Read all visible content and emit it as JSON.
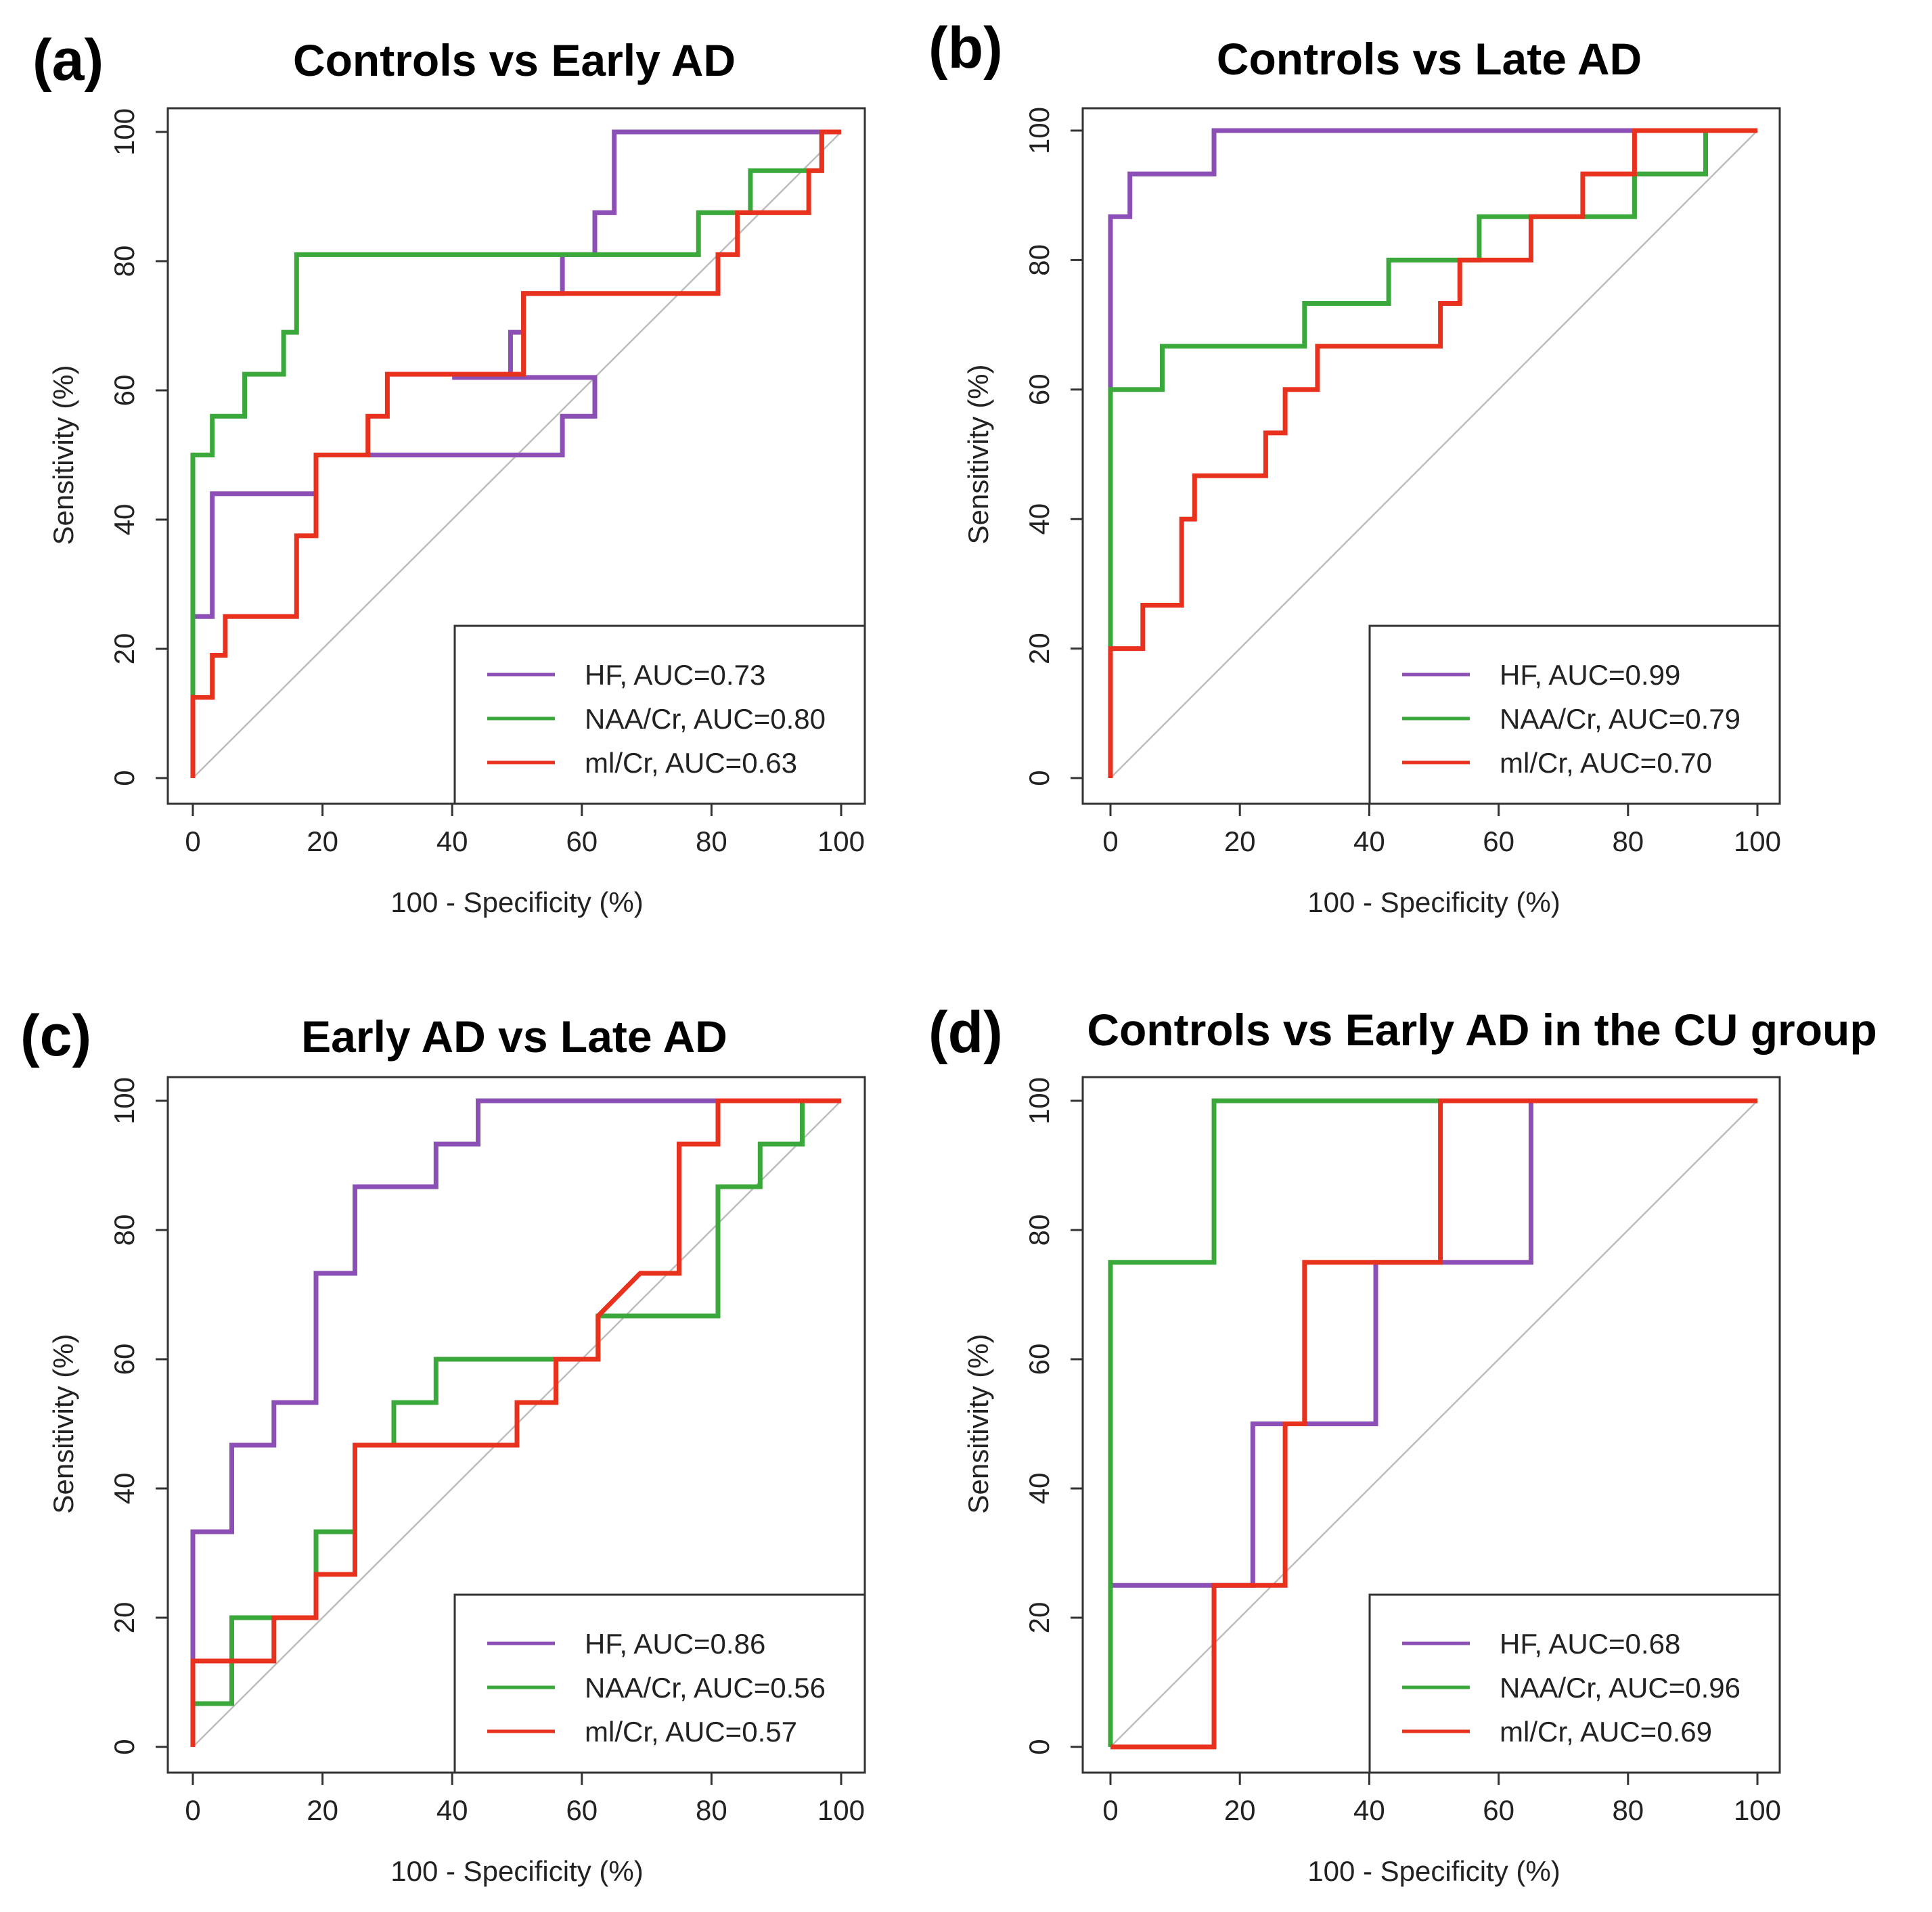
{
  "figure": {
    "xlabel": "100 - Specificity (%)",
    "ylabel": "Sensitivity (%)",
    "ticks": [
      "0",
      "20",
      "40",
      "60",
      "80",
      "100"
    ]
  },
  "colors": {
    "HF": "#8b4fb5",
    "NAA/Cr": "#3aa83a",
    "mI/Cr": "#e8321e",
    "diagonal": "#bdbdbd"
  },
  "chart_data": [
    {
      "id": "a",
      "letter": "(a)",
      "type": "line",
      "title": "Controls vs Early AD",
      "xlabel": "100 - Specificity (%)",
      "ylabel": "Sensitivity (%)",
      "xlim": [
        0,
        100
      ],
      "ylim": [
        0,
        100
      ],
      "series": [
        {
          "name": "HF",
          "legend": "HF, AUC=0.73",
          "auc": 0.73,
          "color": "#8b4fb5",
          "points": [
            [
              0,
              0
            ],
            [
              0,
              25
            ],
            [
              3,
              25
            ],
            [
              3,
              44
            ],
            [
              19,
              44
            ],
            [
              19,
              50
            ],
            [
              57,
              50
            ],
            [
              57,
              56
            ],
            [
              62,
              56
            ],
            [
              62,
              62
            ],
            [
              40,
              62
            ],
            [
              49,
              62
            ],
            [
              49,
              69
            ],
            [
              51,
              69
            ],
            [
              51,
              75
            ],
            [
              57,
              75
            ],
            [
              57,
              81
            ],
            [
              62,
              81
            ],
            [
              62,
              87.5
            ],
            [
              65,
              87.5
            ],
            [
              65,
              100
            ],
            [
              100,
              100
            ]
          ]
        },
        {
          "name": "NAA/Cr",
          "legend": "NAA/Cr, AUC=0.80",
          "auc": 0.8,
          "color": "#3aa83a",
          "points": [
            [
              0,
              0
            ],
            [
              0,
              12.5
            ],
            [
              0,
              50
            ],
            [
              3,
              50
            ],
            [
              3,
              56
            ],
            [
              8,
              56
            ],
            [
              8,
              62.5
            ],
            [
              14,
              62.5
            ],
            [
              14,
              69
            ],
            [
              16,
              69
            ],
            [
              16,
              81
            ],
            [
              78,
              81
            ],
            [
              78,
              87.5
            ],
            [
              86,
              87.5
            ],
            [
              86,
              94
            ],
            [
              97,
              94
            ],
            [
              97,
              100
            ],
            [
              100,
              100
            ]
          ]
        },
        {
          "name": "mI/Cr",
          "legend": "ml/Cr, AUC=0.63",
          "auc": 0.63,
          "color": "#e8321e",
          "points": [
            [
              0,
              0
            ],
            [
              0,
              12.5
            ],
            [
              3,
              12.5
            ],
            [
              3,
              19
            ],
            [
              5,
              19
            ],
            [
              5,
              25
            ],
            [
              16,
              25
            ],
            [
              16,
              37.5
            ],
            [
              19,
              37.5
            ],
            [
              19,
              50
            ],
            [
              27,
              50
            ],
            [
              27,
              56
            ],
            [
              30,
              56
            ],
            [
              30,
              62.5
            ],
            [
              51,
              62.5
            ],
            [
              51,
              75
            ],
            [
              81,
              75
            ],
            [
              81,
              81
            ],
            [
              84,
              81
            ],
            [
              84,
              87.5
            ],
            [
              95,
              87.5
            ],
            [
              95,
              94
            ],
            [
              97,
              94
            ],
            [
              97,
              100
            ],
            [
              100,
              100
            ]
          ]
        }
      ]
    },
    {
      "id": "b",
      "letter": "(b)",
      "type": "line",
      "title": "Controls vs Late AD",
      "xlabel": "100 - Specificity (%)",
      "ylabel": "Sensitivity (%)",
      "xlim": [
        0,
        100
      ],
      "ylim": [
        0,
        100
      ],
      "series": [
        {
          "name": "HF",
          "legend": "HF, AUC=0.99",
          "auc": 0.99,
          "color": "#8b4fb5",
          "points": [
            [
              0,
              0
            ],
            [
              0,
              86.7
            ],
            [
              3,
              86.7
            ],
            [
              3,
              93.3
            ],
            [
              16,
              93.3
            ],
            [
              16,
              100
            ],
            [
              100,
              100
            ]
          ]
        },
        {
          "name": "NAA/Cr",
          "legend": "NAA/Cr, AUC=0.79",
          "auc": 0.79,
          "color": "#3aa83a",
          "points": [
            [
              0,
              0
            ],
            [
              0,
              20
            ],
            [
              0,
              60
            ],
            [
              8,
              60
            ],
            [
              8,
              66.7
            ],
            [
              30,
              66.7
            ],
            [
              30,
              73.3
            ],
            [
              43,
              73.3
            ],
            [
              43,
              80
            ],
            [
              57,
              80
            ],
            [
              57,
              86.7
            ],
            [
              81,
              86.7
            ],
            [
              81,
              93.3
            ],
            [
              92,
              93.3
            ],
            [
              92,
              100
            ],
            [
              100,
              100
            ]
          ]
        },
        {
          "name": "mI/Cr",
          "legend": "ml/Cr, AUC=0.70",
          "auc": 0.7,
          "color": "#e8321e",
          "points": [
            [
              0,
              0
            ],
            [
              0,
              20
            ],
            [
              5,
              20
            ],
            [
              5,
              26.7
            ],
            [
              11,
              26.7
            ],
            [
              11,
              40
            ],
            [
              13,
              40
            ],
            [
              13,
              46.7
            ],
            [
              24,
              46.7
            ],
            [
              24,
              53.3
            ],
            [
              27,
              53.3
            ],
            [
              27,
              60
            ],
            [
              32,
              60
            ],
            [
              32,
              66.7
            ],
            [
              51,
              66.7
            ],
            [
              51,
              73.3
            ],
            [
              54,
              73.3
            ],
            [
              54,
              80
            ],
            [
              65,
              80
            ],
            [
              65,
              86.7
            ],
            [
              73,
              86.7
            ],
            [
              73,
              93.3
            ],
            [
              81,
              93.3
            ],
            [
              81,
              100
            ],
            [
              100,
              100
            ]
          ]
        }
      ]
    },
    {
      "id": "c",
      "letter": "(c)",
      "type": "line",
      "title": "Early AD vs Late AD",
      "xlabel": "100 - Specificity (%)",
      "ylabel": "Sensitivity (%)",
      "xlim": [
        0,
        100
      ],
      "ylim": [
        0,
        100
      ],
      "series": [
        {
          "name": "HF",
          "legend": "HF, AUC=0.86",
          "auc": 0.86,
          "color": "#8b4fb5",
          "points": [
            [
              0,
              0
            ],
            [
              0,
              33.3
            ],
            [
              6,
              33.3
            ],
            [
              6,
              46.7
            ],
            [
              12.5,
              46.7
            ],
            [
              12.5,
              53.3
            ],
            [
              19,
              53.3
            ],
            [
              19,
              73.3
            ],
            [
              25,
              73.3
            ],
            [
              25,
              86.7
            ],
            [
              37.5,
              86.7
            ],
            [
              37.5,
              93.3
            ],
            [
              44,
              93.3
            ],
            [
              44,
              100
            ],
            [
              100,
              100
            ]
          ]
        },
        {
          "name": "NAA/Cr",
          "legend": "NAA/Cr, AUC=0.56",
          "auc": 0.56,
          "color": "#3aa83a",
          "points": [
            [
              0,
              0
            ],
            [
              0,
              6.7
            ],
            [
              6,
              6.7
            ],
            [
              6,
              20
            ],
            [
              12.5,
              20
            ],
            [
              19,
              20
            ],
            [
              19,
              33.3
            ],
            [
              25,
              33.3
            ],
            [
              25,
              46.7
            ],
            [
              31,
              46.7
            ],
            [
              31,
              53.3
            ],
            [
              37.5,
              53.3
            ],
            [
              37.5,
              60
            ],
            [
              62.5,
              60
            ],
            [
              62.5,
              66.7
            ],
            [
              81,
              66.7
            ],
            [
              81,
              86.7
            ],
            [
              87.5,
              86.7
            ],
            [
              87.5,
              93.3
            ],
            [
              94,
              93.3
            ],
            [
              94,
              100
            ],
            [
              100,
              100
            ]
          ]
        },
        {
          "name": "mI/Cr",
          "legend": "ml/Cr, AUC=0.57",
          "auc": 0.57,
          "color": "#e8321e",
          "points": [
            [
              0,
              0
            ],
            [
              0,
              13.3
            ],
            [
              12.5,
              13.3
            ],
            [
              12.5,
              20
            ],
            [
              19,
              20
            ],
            [
              19,
              26.7
            ],
            [
              25,
              26.7
            ],
            [
              25,
              46.7
            ],
            [
              50,
              46.7
            ],
            [
              50,
              53.3
            ],
            [
              56,
              53.3
            ],
            [
              56,
              60
            ],
            [
              62.5,
              60
            ],
            [
              62.5,
              66.7
            ],
            [
              69,
              73.3
            ],
            [
              75,
              73.3
            ],
            [
              75,
              93.3
            ],
            [
              81,
              93.3
            ],
            [
              81,
              100
            ],
            [
              100,
              100
            ]
          ]
        }
      ]
    },
    {
      "id": "d",
      "letter": "(d)",
      "type": "line",
      "title": "Controls vs Early AD in the CU group",
      "xlabel": "100 - Specificity (%)",
      "ylabel": "Sensitivity (%)",
      "xlim": [
        0,
        100
      ],
      "ylim": [
        0,
        100
      ],
      "series": [
        {
          "name": "HF",
          "legend": "HF, AUC=0.68",
          "auc": 0.68,
          "color": "#8b4fb5",
          "points": [
            [
              0,
              0
            ],
            [
              0,
              25
            ],
            [
              22,
              25
            ],
            [
              22,
              50
            ],
            [
              41,
              50
            ],
            [
              41,
              75
            ],
            [
              65,
              75
            ],
            [
              65,
              100
            ],
            [
              100,
              100
            ]
          ]
        },
        {
          "name": "NAA/Cr",
          "legend": "NAA/Cr, AUC=0.96",
          "auc": 0.96,
          "color": "#3aa83a",
          "points": [
            [
              0,
              0
            ],
            [
              0,
              75
            ],
            [
              16,
              75
            ],
            [
              16,
              100
            ],
            [
              100,
              100
            ]
          ]
        },
        {
          "name": "mI/Cr",
          "legend": "ml/Cr, AUC=0.69",
          "auc": 0.69,
          "color": "#e8321e",
          "points": [
            [
              0,
              0
            ],
            [
              16,
              0
            ],
            [
              16,
              25
            ],
            [
              27,
              25
            ],
            [
              27,
              50
            ],
            [
              30,
              50
            ],
            [
              30,
              75
            ],
            [
              51,
              75
            ],
            [
              51,
              100
            ],
            [
              100,
              100
            ]
          ]
        }
      ]
    }
  ]
}
